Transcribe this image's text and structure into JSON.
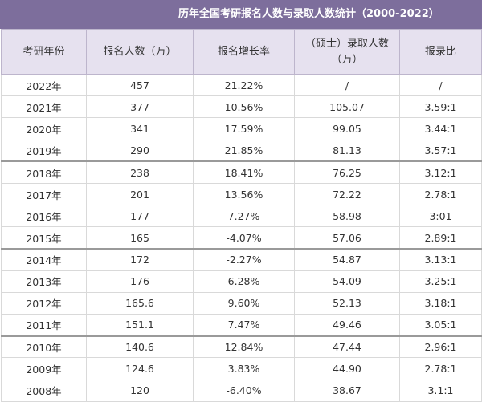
{
  "table": {
    "title": "历年全国考研报名人数与录取人数统计（2000-2022）",
    "headers": [
      "考研年份",
      "报名人数（万）",
      "报名增长率",
      "（硕士）录取人数（万）",
      "报录比"
    ],
    "rows": [
      [
        "2022年",
        "457",
        "21.22%",
        "/",
        "/"
      ],
      [
        "2021年",
        "377",
        "10.56%",
        "105.07",
        "3.59:1"
      ],
      [
        "2020年",
        "341",
        "17.59%",
        "99.05",
        "3.44:1"
      ],
      [
        "2019年",
        "290",
        "21.85%",
        "81.13",
        "3.57:1"
      ],
      [
        "2018年",
        "238",
        "18.41%",
        "76.25",
        "3.12:1"
      ],
      [
        "2017年",
        "201",
        "13.56%",
        "72.22",
        "2.78:1"
      ],
      [
        "2016年",
        "177",
        "7.27%",
        "58.98",
        "3:01"
      ],
      [
        "2015年",
        "165",
        "-4.07%",
        "57.06",
        "2.89:1"
      ],
      [
        "2014年",
        "172",
        "-2.27%",
        "54.87",
        "3.13:1"
      ],
      [
        "2013年",
        "176",
        "6.28%",
        "54.09",
        "3.25:1"
      ],
      [
        "2012年",
        "165.6",
        "9.60%",
        "52.13",
        "3.18:1"
      ],
      [
        "2011年",
        "151.1",
        "7.47%",
        "49.46",
        "3.05:1"
      ],
      [
        "2010年",
        "140.6",
        "12.84%",
        "47.44",
        "2.96:1"
      ],
      [
        "2009年",
        "124.6",
        "3.83%",
        "44.90",
        "2.78:1"
      ],
      [
        "2008年",
        "120",
        "-6.40%",
        "38.67",
        "3.1:1"
      ]
    ]
  },
  "colors": {
    "title_background": "#7d6e9c",
    "header_background": "#e6e1ef"
  }
}
